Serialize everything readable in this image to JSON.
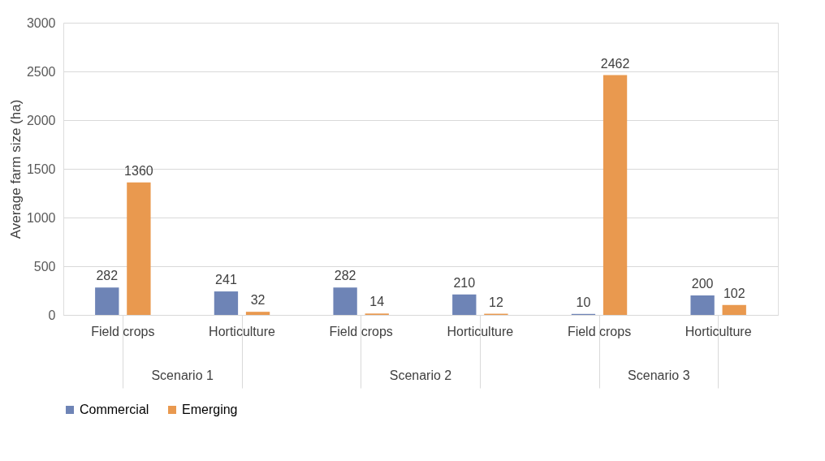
{
  "chart_data": {
    "type": "bar",
    "ylabel": "Average farm size (ha)",
    "categories": [
      "Field crops",
      "Horticulture",
      "Field crops",
      "Horticulture",
      "Field crops",
      "Horticulture"
    ],
    "series": [
      {
        "name": "Commercial",
        "color": "#6e84b6",
        "values": [
          282,
          241,
          282,
          210,
          10,
          200
        ]
      },
      {
        "name": "Emerging",
        "color": "#e9994f",
        "values": [
          1360,
          32,
          14,
          12,
          2462,
          102
        ]
      }
    ],
    "annotations": [
      "Scenario 1",
      "Scenario 2",
      "Scenario 3"
    ],
    "ylim": [
      0,
      3000
    ],
    "yticks": [
      0,
      500,
      1000,
      1500,
      2000,
      2500,
      3000
    ],
    "grid": "y",
    "legend": "bottom",
    "data_labels": true
  }
}
